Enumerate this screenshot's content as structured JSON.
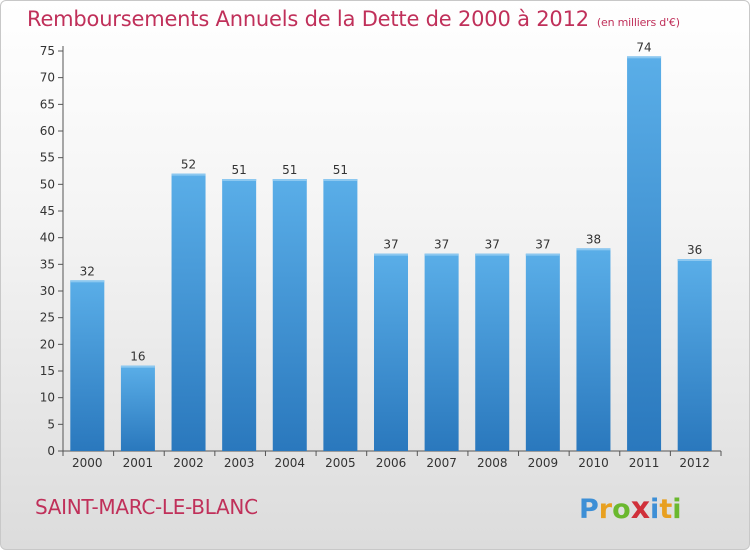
{
  "chart_data": {
    "type": "bar",
    "title": "Remboursements Annuels de la Dette de 2000 à 2012",
    "unit_note": "(en milliers d'€)",
    "categories": [
      "2000",
      "2001",
      "2002",
      "2003",
      "2004",
      "2005",
      "2006",
      "2007",
      "2008",
      "2009",
      "2010",
      "2011",
      "2012"
    ],
    "values": [
      32,
      16,
      52,
      51,
      51,
      51,
      37,
      37,
      37,
      37,
      38,
      74,
      36
    ],
    "ylim": [
      0,
      75
    ],
    "yticks": [
      0,
      5,
      10,
      15,
      20,
      25,
      30,
      35,
      40,
      45,
      50,
      55,
      60,
      65,
      70,
      75
    ],
    "grid": false,
    "bar_color": "#4a9fe0",
    "bar_color_dark": "#2f7fc4"
  },
  "footer": {
    "commune": "SAINT-MARC-LE-BLANC"
  },
  "logo": {
    "letters": [
      "P",
      "r",
      "o",
      "x",
      "i",
      "t",
      "i"
    ],
    "colors": [
      "#3d8fd6",
      "#e8a020",
      "#6ab82e",
      "#d0303a",
      "#3d8fd6",
      "#e8a020",
      "#6ab82e"
    ]
  },
  "colors": {
    "title": "#c0305a"
  }
}
